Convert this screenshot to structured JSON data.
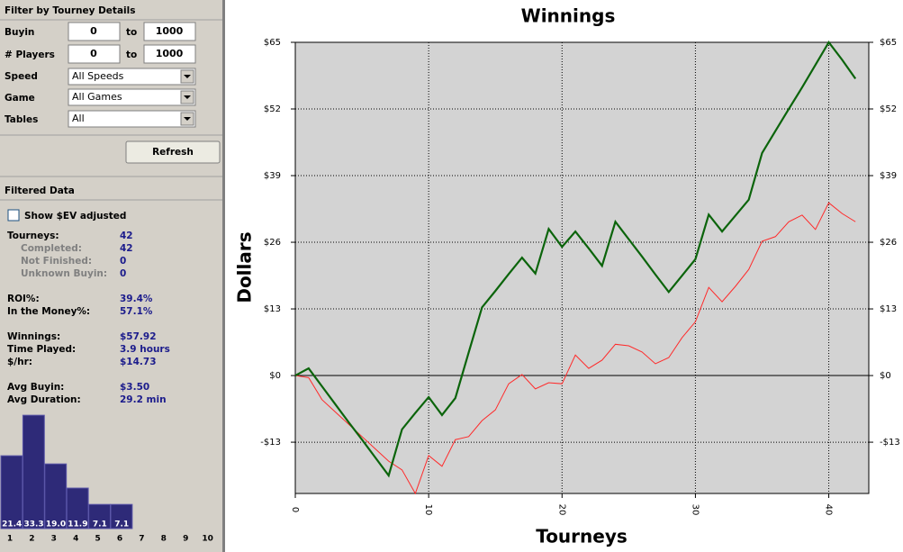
{
  "sidebar": {
    "filter_title": "Filter by Tourney Details",
    "to": "to",
    "buyin": {
      "label": "Buyin",
      "min": 0,
      "max": 1000
    },
    "players": {
      "label": "# Players",
      "min": 0,
      "max": 1000
    },
    "speed": {
      "label": "Speed",
      "value": "All Speeds"
    },
    "game": {
      "label": "Game",
      "value": "All Games"
    },
    "tables": {
      "label": "Tables",
      "value": "All"
    },
    "refresh": "Refresh",
    "filtered_title": "Filtered Data",
    "ev_checkbox": "Show $EV adjusted",
    "stats": [
      {
        "label": "Tourneys:",
        "value": 42
      },
      {
        "label": "Completed:",
        "value": 42
      },
      {
        "label": "Not Finished:",
        "value": 0
      },
      {
        "label": "Unknown Buyin:",
        "value": 0
      },
      {
        "label": "ROI%:",
        "value": "39.4%"
      },
      {
        "label": "In the Money%:",
        "value": "57.1%"
      },
      {
        "label": "Winnings:",
        "value": "$57.92"
      },
      {
        "label": "Time Played:",
        "value": "3.9 hours"
      },
      {
        "label": "$/hr:",
        "value": "$14.73"
      },
      {
        "label": "Avg Buyin:",
        "value": "$3.50"
      },
      {
        "label": "Avg Duration:",
        "value": "29.2 min"
      }
    ]
  },
  "chart_data": [
    {
      "type": "line",
      "title": "Winnings",
      "xlabel": "Tourneys",
      "ylabel": "Dollars",
      "x": [
        0,
        1,
        2,
        3,
        4,
        5,
        6,
        7,
        8,
        9,
        10,
        11,
        12,
        13,
        14,
        15,
        16,
        17,
        18,
        19,
        20,
        21,
        22,
        23,
        24,
        25,
        26,
        27,
        28,
        29,
        30,
        31,
        32,
        33,
        34,
        35,
        36,
        37,
        38,
        39,
        40,
        41,
        42
      ],
      "series": [
        {
          "color": "#0b640b",
          "values": [
            0,
            1.4,
            -2.1,
            -5.6,
            -9.1,
            -12.5,
            -16.0,
            -19.5,
            -10.5,
            -7.3,
            -4.2,
            -7.7,
            -4.4,
            4.5,
            13.3,
            16.5,
            19.8,
            23.0,
            19.9,
            28.6,
            25.1,
            28.1,
            24.8,
            21.4,
            30.0,
            26.6,
            23.2,
            19.7,
            16.3,
            19.5,
            22.7,
            31.4,
            28.1,
            31.2,
            34.3,
            43.4,
            47.7,
            52.0,
            56.2,
            60.6,
            65.0,
            61.6,
            57.9
          ]
        },
        {
          "color": "#ff2a2a",
          "values": [
            0,
            -0.4,
            -4.7,
            -7.1,
            -9.5,
            -11.9,
            -14.3,
            -16.7,
            -18.4,
            -23.0,
            -15.6,
            -17.7,
            -12.5,
            -11.9,
            -8.8,
            -6.7,
            -1.6,
            0.2,
            -2.6,
            -1.4,
            -1.6,
            4.0,
            1.4,
            3.0,
            6.1,
            5.8,
            4.6,
            2.3,
            3.5,
            7.4,
            10.5,
            17.2,
            14.4,
            17.4,
            20.7,
            26.2,
            27.1,
            30.0,
            31.3,
            28.5,
            33.7,
            31.6,
            30.0
          ]
        }
      ],
      "xlim": [
        0,
        43
      ],
      "ylim": [
        -23,
        65
      ],
      "xticks": [
        0,
        10,
        20,
        30,
        40
      ],
      "yticks": [
        {
          "value": -13,
          "label": "-$13"
        },
        {
          "value": 0,
          "label": "$0"
        },
        {
          "value": 13,
          "label": "$13"
        },
        {
          "value": 26,
          "label": "$26"
        },
        {
          "value": 39,
          "label": "$39"
        },
        {
          "value": 52,
          "label": "$52"
        },
        {
          "value": 65,
          "label": "$65"
        }
      ],
      "grid": true
    },
    {
      "type": "bar",
      "color": "#2e2a78",
      "categories": [
        1,
        2,
        3,
        4,
        5,
        6,
        7,
        8,
        9,
        10
      ],
      "values": [
        21.4,
        33.3,
        19.0,
        11.9,
        7.1,
        7.1,
        null,
        null,
        null,
        null
      ],
      "value_labels": [
        "21.4",
        "33.3",
        "19.0",
        "11.9",
        "7.1",
        "7.1",
        null,
        null,
        null,
        null
      ]
    }
  ]
}
